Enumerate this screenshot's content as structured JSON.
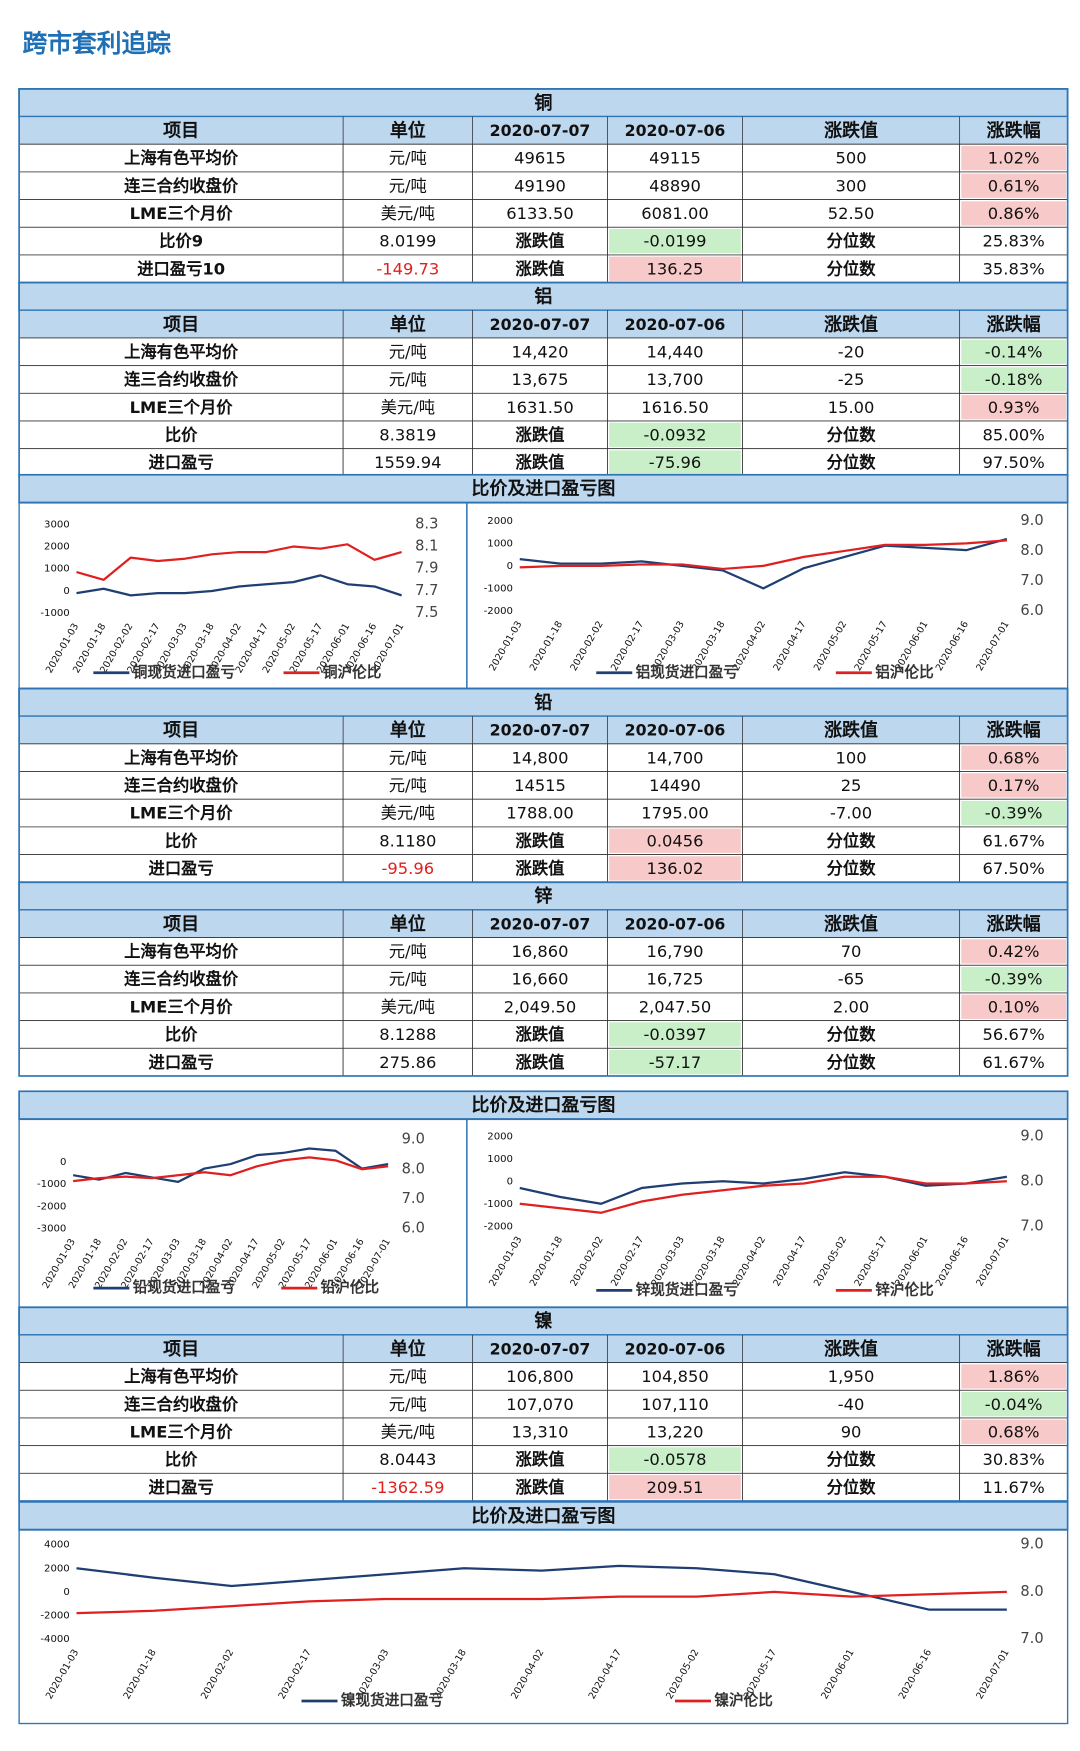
{
  "title": "跨市套利追踪",
  "columns": [
    "项目",
    "单位",
    "2020-07-07",
    "2020-07-06",
    "涨跌值",
    "涨跌幅"
  ],
  "chart_title": "比价及进口盈亏图",
  "sections": [
    {
      "name": "铜",
      "rows": [
        {
          "cells": [
            "上海有色平均价",
            "元/吨",
            "49615",
            "49115",
            "500",
            "1.02%"
          ],
          "fills": {
            "5": "#f8c9c9"
          }
        },
        {
          "cells": [
            "连三合约收盘价",
            "元/吨",
            "49190",
            "48890",
            "300",
            "0.61%"
          ],
          "fills": {
            "5": "#f8c9c9"
          }
        },
        {
          "cells": [
            "LME三个月价",
            "美元/吨",
            "6133.50",
            "6081.00",
            "52.50",
            "0.86%"
          ],
          "fills": {
            "5": "#f8c9c9"
          }
        },
        {
          "cells": [
            "比价9",
            "8.0199",
            "涨跌值",
            "-0.0199",
            "分位数",
            "25.83%"
          ],
          "fills": {
            "3": "#c8efc8"
          }
        },
        {
          "cells": [
            "进口盈亏10",
            "-149.73",
            "涨跌值",
            "136.25",
            "分位数",
            "35.83%"
          ],
          "fills": {
            "3": "#f8c9c9"
          },
          "text_colors": {
            "1": "#e0201c"
          }
        }
      ]
    },
    {
      "name": "铝",
      "rows": [
        {
          "cells": [
            "上海有色平均价",
            "元/吨",
            "14,420",
            "14,440",
            "-20",
            "-0.14%"
          ],
          "fills": {
            "5": "#c8efc8"
          }
        },
        {
          "cells": [
            "连三合约收盘价",
            "元/吨",
            "13,675",
            "13,700",
            "-25",
            "-0.18%"
          ],
          "fills": {
            "5": "#c8efc8"
          }
        },
        {
          "cells": [
            "LME三个月价",
            "美元/吨",
            "1631.50",
            "1616.50",
            "15.00",
            "0.93%"
          ],
          "fills": {
            "5": "#f8c9c9"
          }
        },
        {
          "cells": [
            "比价",
            "8.3819",
            "涨跌值",
            "-0.0932",
            "分位数",
            "85.00%"
          ],
          "fills": {
            "3": "#c8efc8"
          }
        },
        {
          "cells": [
            "进口盈亏",
            "1559.94",
            "涨跌值",
            "-75.96",
            "分位数",
            "97.50%"
          ],
          "fills": {
            "3": "#c8efc8"
          }
        }
      ]
    },
    {
      "name": "铅",
      "rows": [
        {
          "cells": [
            "上海有色平均价",
            "元/吨",
            "14,800",
            "14,700",
            "100",
            "0.68%"
          ],
          "fills": {
            "5": "#f8c9c9"
          }
        },
        {
          "cells": [
            "连三合约收盘价",
            "元/吨",
            "14515",
            "14490",
            "25",
            "0.17%"
          ],
          "fills": {
            "5": "#f8c9c9"
          }
        },
        {
          "cells": [
            "LME三个月价",
            "美元/吨",
            "1788.00",
            "1795.00",
            "-7.00",
            "-0.39%"
          ],
          "fills": {
            "5": "#c8efc8"
          }
        },
        {
          "cells": [
            "比价",
            "8.1180",
            "涨跌值",
            "0.0456",
            "分位数",
            "61.67%"
          ],
          "fills": {
            "3": "#f8c9c9"
          }
        },
        {
          "cells": [
            "进口盈亏",
            "-95.96",
            "涨跌值",
            "136.02",
            "分位数",
            "67.50%"
          ],
          "fills": {
            "3": "#f8c9c9"
          },
          "text_colors": {
            "1": "#e0201c"
          }
        }
      ]
    },
    {
      "name": "锌",
      "rows": [
        {
          "cells": [
            "上海有色平均价",
            "元/吨",
            "16,860",
            "16,790",
            "70",
            "0.42%"
          ],
          "fills": {
            "5": "#f8c9c9"
          }
        },
        {
          "cells": [
            "连三合约收盘价",
            "元/吨",
            "16,660",
            "16,725",
            "-65",
            "-0.39%"
          ],
          "fills": {
            "5": "#c8efc8"
          }
        },
        {
          "cells": [
            "LME三个月价",
            "美元/吨",
            "2,049.50",
            "2,047.50",
            "2.00",
            "0.10%"
          ],
          "fills": {
            "5": "#f8c9c9"
          }
        },
        {
          "cells": [
            "比价",
            "8.1288",
            "涨跌值",
            "-0.0397",
            "分位数",
            "56.67%"
          ],
          "fills": {
            "3": "#c8efc8"
          }
        },
        {
          "cells": [
            "进口盈亏",
            "275.86",
            "涨跌值",
            "-57.17",
            "分位数",
            "61.67%"
          ],
          "fills": {
            "3": "#c8efc8"
          }
        }
      ]
    },
    {
      "name": "镍",
      "rows": [
        {
          "cells": [
            "上海有色平均价",
            "元/吨",
            "106,800",
            "104,850",
            "1,950",
            "1.86%"
          ],
          "fills": {
            "5": "#f8c9c9"
          }
        },
        {
          "cells": [
            "连三合约收盘价",
            "元/吨",
            "107,070",
            "107,110",
            "-40",
            "-0.04%"
          ],
          "fills": {
            "5": "#c8efc8"
          }
        },
        {
          "cells": [
            "LME三个月价",
            "美元/吨",
            "13,310",
            "13,220",
            "90",
            "0.68%"
          ],
          "fills": {
            "5": "#f8c9c9"
          }
        },
        {
          "cells": [
            "比价",
            "8.0443",
            "涨跌值",
            "-0.0578",
            "分位数",
            "30.83%"
          ],
          "fills": {
            "3": "#c8efc8"
          }
        },
        {
          "cells": [
            "进口盈亏",
            "-1362.59",
            "涨跌值",
            "209.51",
            "分位数",
            "11.67%"
          ],
          "fills": {
            "3": "#f8c9c9"
          },
          "text_colors": {
            "1": "#e0201c"
          }
        }
      ]
    }
  ],
  "chart_data": [
    {
      "type": "line",
      "categories": [
        "2020-01-03",
        "2020-01-18",
        "2020-02-02",
        "2020-02-17",
        "2020-03-03",
        "2020-03-18",
        "2020-04-02",
        "2020-04-17",
        "2020-05-02",
        "2020-05-17",
        "2020-06-01",
        "2020-06-16",
        "2020-07-01"
      ],
      "ylim": [
        -1000,
        3000
      ],
      "yticks": [
        3000,
        2000,
        1000,
        0,
        -1000
      ],
      "y2lim": [
        7.5,
        8.3
      ],
      "y2ticks": [
        {
          "value": 8.3,
          "label": "8.3"
        },
        {
          "value": 8.1,
          "label": "8.1"
        },
        {
          "value": 7.9,
          "label": "7.9"
        },
        {
          "value": 7.7,
          "label": "7.7"
        },
        {
          "value": 7.5,
          "label": "7.5"
        }
      ],
      "series": [
        {
          "name": "铜现货进口盈亏",
          "color": "#1f3f73",
          "values": [
            -100,
            100,
            -200,
            -100,
            -100,
            0,
            200,
            300,
            400,
            700,
            300,
            200,
            -200
          ]
        },
        {
          "name": "铜沪伦比",
          "color": "#e02020",
          "axis": "y2",
          "values": [
            7.87,
            7.8,
            8.0,
            7.97,
            7.99,
            8.03,
            8.05,
            8.05,
            8.1,
            8.08,
            8.12,
            7.98,
            8.05
          ]
        }
      ]
    },
    {
      "type": "line",
      "categories": [
        "2020-01-03",
        "2020-01-18",
        "2020-02-02",
        "2020-02-17",
        "2020-03-03",
        "2020-03-18",
        "2020-04-02",
        "2020-04-17",
        "2020-05-02",
        "2020-05-17",
        "2020-06-01",
        "2020-06-16",
        "2020-07-01"
      ],
      "ylim": [
        -2000,
        2000
      ],
      "yticks": [
        2000,
        1000,
        0,
        -1000,
        -2000
      ],
      "y2lim": [
        6,
        9
      ],
      "y2ticks": [
        {
          "value": 9,
          "label": "9.0"
        },
        {
          "value": 8,
          "label": "8.0"
        },
        {
          "value": 7,
          "label": "7.0"
        },
        {
          "value": 6,
          "label": "6.0"
        }
      ],
      "series": [
        {
          "name": "铝现货进口盈亏",
          "color": "#1f3f73",
          "values": [
            300,
            100,
            100,
            200,
            0,
            -200,
            -1000,
            -100,
            400,
            900,
            800,
            700,
            1200
          ]
        },
        {
          "name": "铝沪伦比",
          "color": "#e02020",
          "axis": "y2",
          "values": [
            7.45,
            7.5,
            7.5,
            7.55,
            7.55,
            7.4,
            7.5,
            7.8,
            8.0,
            8.2,
            8.2,
            8.25,
            8.35
          ]
        }
      ]
    },
    {
      "type": "line",
      "categories": [
        "2020-01-03",
        "2020-01-18",
        "2020-02-02",
        "2020-02-17",
        "2020-03-03",
        "2020-03-18",
        "2020-04-02",
        "2020-04-17",
        "2020-05-02",
        "2020-05-17",
        "2020-06-01",
        "2020-06-16",
        "2020-07-01"
      ],
      "ylim": [
        -3000,
        1000
      ],
      "yticks": [
        0,
        -1000,
        -2000,
        -3000
      ],
      "y2lim": [
        6,
        9
      ],
      "y2ticks": [
        {
          "value": 9,
          "label": "9.0"
        },
        {
          "value": 8,
          "label": "8.0"
        },
        {
          "value": 7,
          "label": "7.0"
        },
        {
          "value": 6,
          "label": "6.0"
        }
      ],
      "series": [
        {
          "name": "铅现货进口盈亏",
          "color": "#1f3f73",
          "values": [
            -600,
            -800,
            -500,
            -700,
            -900,
            -300,
            -100,
            300,
            400,
            600,
            500,
            -300,
            -100
          ]
        },
        {
          "name": "铅沪伦比",
          "color": "#e02020",
          "axis": "y2",
          "values": [
            7.6,
            7.7,
            7.75,
            7.7,
            7.8,
            7.9,
            7.8,
            8.1,
            8.3,
            8.4,
            8.3,
            8.0,
            8.1
          ]
        }
      ]
    },
    {
      "type": "line",
      "categories": [
        "2020-01-03",
        "2020-01-18",
        "2020-02-02",
        "2020-02-17",
        "2020-03-03",
        "2020-03-18",
        "2020-04-02",
        "2020-04-17",
        "2020-05-02",
        "2020-05-17",
        "2020-06-01",
        "2020-06-16",
        "2020-07-01"
      ],
      "ylim": [
        -2000,
        2000
      ],
      "yticks": [
        2000,
        1000,
        0,
        -1000,
        -2000
      ],
      "y2lim": [
        7,
        9
      ],
      "y2ticks": [
        {
          "value": 9,
          "label": "9.0"
        },
        {
          "value": 8,
          "label": "8.0"
        },
        {
          "value": 7,
          "label": "7.0"
        }
      ],
      "series": [
        {
          "name": "锌现货进口盈亏",
          "color": "#1f3f73",
          "values": [
            -300,
            -700,
            -1000,
            -300,
            -100,
            0,
            -100,
            100,
            400,
            200,
            -200,
            -100,
            200
          ]
        },
        {
          "name": "锌沪伦比",
          "color": "#e02020",
          "axis": "y2",
          "values": [
            7.5,
            7.4,
            7.3,
            7.55,
            7.7,
            7.8,
            7.9,
            7.95,
            8.1,
            8.1,
            7.95,
            7.95,
            8.0
          ]
        }
      ]
    },
    {
      "type": "line",
      "categories": [
        "2020-01-03",
        "2020-01-18",
        "2020-02-02",
        "2020-02-17",
        "2020-03-03",
        "2020-03-18",
        "2020-04-02",
        "2020-04-17",
        "2020-05-02",
        "2020-05-17",
        "2020-06-01",
        "2020-06-16",
        "2020-07-01"
      ],
      "ylim": [
        -4000,
        4000
      ],
      "yticks": [
        4000,
        2000,
        0,
        -2000,
        -4000
      ],
      "y2lim": [
        7,
        9
      ],
      "y2ticks": [
        {
          "value": 9,
          "label": "9.0"
        },
        {
          "value": 8,
          "label": "8.0"
        },
        {
          "value": 7,
          "label": "7.0"
        }
      ],
      "series": [
        {
          "name": "镍现货进口盈亏",
          "color": "#1f3f73",
          "values": [
            2000,
            1200,
            500,
            1000,
            1500,
            2000,
            1800,
            2200,
            2000,
            1500,
            0,
            -1500,
            -1500
          ]
        },
        {
          "name": "镍沪伦比",
          "color": "#e02020",
          "axis": "y2",
          "values": [
            7.55,
            7.6,
            7.7,
            7.8,
            7.85,
            7.85,
            7.85,
            7.9,
            7.9,
            8.0,
            7.9,
            7.95,
            8.0
          ]
        }
      ]
    }
  ]
}
